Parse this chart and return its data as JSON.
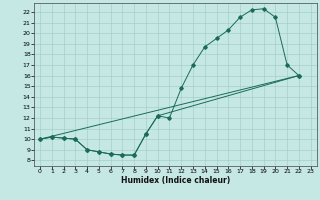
{
  "xlabel": "Humidex (Indice chaleur)",
  "ylabel": "",
  "bg_color": "#c5e8e4",
  "grid_color": "#a0c8c4",
  "line_color": "#1a6b5a",
  "xlim": [
    -0.5,
    23.5
  ],
  "ylim": [
    7.5,
    22.8
  ],
  "xticks": [
    0,
    1,
    2,
    3,
    4,
    5,
    6,
    7,
    8,
    9,
    10,
    11,
    12,
    13,
    14,
    15,
    16,
    17,
    18,
    19,
    20,
    21,
    22,
    23
  ],
  "yticks": [
    8,
    9,
    10,
    11,
    12,
    13,
    14,
    15,
    16,
    17,
    18,
    19,
    20,
    21,
    22
  ],
  "line1_x": [
    0,
    1,
    2,
    3,
    4,
    5,
    6,
    7,
    8,
    9,
    10,
    11,
    12,
    13,
    14,
    15,
    16,
    17,
    18,
    19,
    20,
    21,
    22
  ],
  "line1_y": [
    10,
    10.2,
    10.1,
    10,
    9,
    8.8,
    8.6,
    8.5,
    8.5,
    10.5,
    12.2,
    12,
    14.8,
    17,
    18.7,
    19.5,
    20.3,
    21.5,
    22.2,
    22.3,
    21.5,
    17,
    16
  ],
  "line2_x": [
    0,
    1,
    2,
    3,
    4,
    5,
    6,
    7,
    8,
    9,
    10,
    22
  ],
  "line2_y": [
    10,
    10.2,
    10.1,
    10,
    9,
    8.8,
    8.6,
    8.5,
    8.5,
    10.5,
    12.2,
    16
  ],
  "line3_x": [
    0,
    22
  ],
  "line3_y": [
    10,
    16
  ]
}
